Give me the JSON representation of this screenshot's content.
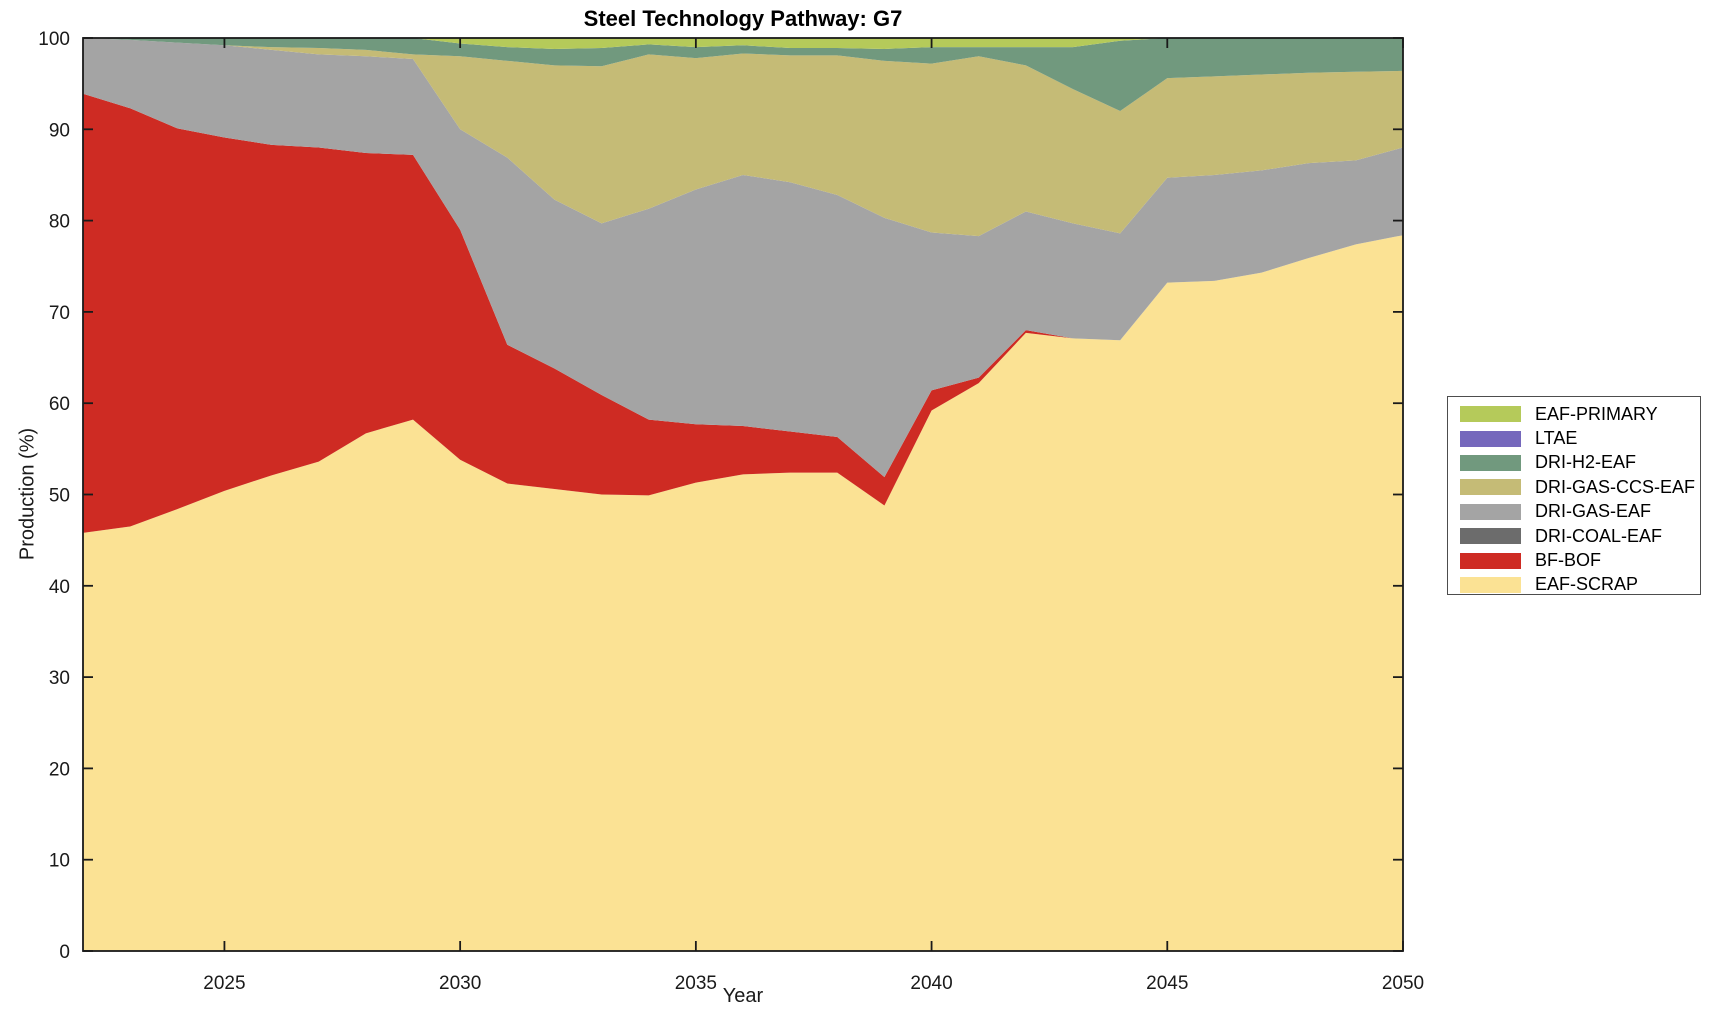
{
  "title": "Steel Technology Pathway: G7",
  "chart_data": {
    "type": "area",
    "stacked": true,
    "title": "Steel Technology Pathway: G7",
    "xlabel": "Year",
    "ylabel": "Production (%)",
    "xlim": [
      2022,
      2050
    ],
    "ylim": [
      0,
      100
    ],
    "x_ticks": [
      2025,
      2030,
      2035,
      2040,
      2045,
      2050
    ],
    "y_ticks": [
      0,
      10,
      20,
      30,
      40,
      50,
      60,
      70,
      80,
      90,
      100
    ],
    "grid": false,
    "legend_position": "outside-right",
    "legend_order_note": "legend lists layers top-first; series below are stacked bottom-to-top",
    "x": [
      2022,
      2023,
      2024,
      2025,
      2026,
      2027,
      2028,
      2029,
      2030,
      2031,
      2032,
      2033,
      2034,
      2035,
      2036,
      2037,
      2038,
      2039,
      2040,
      2041,
      2042,
      2043,
      2044,
      2045,
      2046,
      2047,
      2048,
      2049,
      2050
    ],
    "series": [
      {
        "name": "EAF-SCRAP",
        "color": "#FBE294",
        "values": [
          45.8,
          46.5,
          48.4,
          50.4,
          52.1,
          53.6,
          56.7,
          58.2,
          53.8,
          51.2,
          50.6,
          50.0,
          49.9,
          51.3,
          52.2,
          52.4,
          52.4,
          48.8,
          59.2,
          62.2,
          67.7,
          67.1,
          66.9,
          73.2,
          73.4,
          74.3,
          75.9,
          77.4,
          78.4
        ]
      },
      {
        "name": "BF-BOF",
        "color": "#CE2B23",
        "values": [
          48.1,
          45.8,
          41.7,
          38.7,
          36.2,
          34.4,
          30.7,
          29.0,
          25.2,
          15.2,
          13.2,
          10.9,
          8.3,
          6.4,
          5.3,
          4.5,
          3.9,
          3.1,
          2.2,
          0.6,
          0.3,
          0,
          0,
          0,
          0,
          0,
          0,
          0,
          0
        ]
      },
      {
        "name": "DRI-COAL-EAF",
        "color": "#6C6C6C",
        "values": [
          0,
          0,
          0,
          0,
          0,
          0,
          0,
          0,
          0,
          0,
          0,
          0,
          0,
          0,
          0,
          0,
          0,
          0,
          0,
          0,
          0,
          0,
          0,
          0,
          0,
          0,
          0,
          0,
          0
        ]
      },
      {
        "name": "DRI-GAS-EAF",
        "color": "#A4A4A4",
        "values": [
          6.1,
          7.5,
          9.4,
          10.1,
          10.4,
          10.2,
          10.6,
          10.5,
          11.0,
          20.5,
          18.5,
          18.8,
          23.1,
          25.7,
          27.5,
          27.3,
          26.5,
          28.4,
          17.3,
          15.5,
          13.0,
          12.6,
          11.7,
          11.5,
          11.6,
          11.2,
          10.4,
          9.2,
          9.6
        ]
      },
      {
        "name": "DRI-GAS-CCS-EAF",
        "color": "#C5BB76",
        "values": [
          0,
          0,
          0,
          0,
          0.3,
          0.7,
          0.7,
          0.5,
          8.0,
          10.6,
          14.7,
          17.2,
          16.9,
          14.4,
          13.3,
          13.9,
          15.3,
          17.2,
          18.5,
          19.7,
          16.0,
          14.7,
          13.4,
          10.9,
          10.8,
          10.5,
          9.9,
          9.7,
          8.4
        ]
      },
      {
        "name": "DRI-H2-EAF",
        "color": "#71997E",
        "values": [
          0,
          0.2,
          0.5,
          0.8,
          1.0,
          1.1,
          1.3,
          1.8,
          1.4,
          1.5,
          1.8,
          2.0,
          1.1,
          1.2,
          0.9,
          0.8,
          0.8,
          1.3,
          1.8,
          1.0,
          2.0,
          4.6,
          7.7,
          4.4,
          4.2,
          4.0,
          3.8,
          3.7,
          3.6
        ]
      },
      {
        "name": "LTAE",
        "color": "#7568BC",
        "values": [
          0,
          0,
          0,
          0,
          0,
          0,
          0,
          0,
          0,
          0,
          0,
          0,
          0,
          0,
          0,
          0,
          0,
          0,
          0,
          0,
          0,
          0,
          0,
          0,
          0,
          0,
          0,
          0,
          0
        ]
      },
      {
        "name": "EAF-PRIMARY",
        "color": "#B5CA5A",
        "values": [
          0,
          0,
          0,
          0,
          0,
          0,
          0,
          0,
          0.6,
          1.0,
          1.2,
          1.1,
          0.7,
          1.0,
          0.8,
          1.1,
          1.1,
          1.2,
          1.0,
          1.0,
          1.0,
          1.0,
          0.3,
          0,
          0,
          0,
          0,
          0,
          0
        ]
      }
    ],
    "axis_color": "#1a1a1a"
  }
}
